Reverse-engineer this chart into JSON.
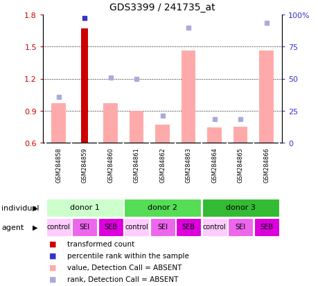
{
  "title": "GDS3399 / 241735_at",
  "samples": [
    "GSM284858",
    "GSM284859",
    "GSM284860",
    "GSM284861",
    "GSM284862",
    "GSM284863",
    "GSM284864",
    "GSM284865",
    "GSM284866"
  ],
  "bar_values": [
    null,
    1.67,
    null,
    null,
    null,
    null,
    null,
    null,
    null
  ],
  "bar_pink_values": [
    0.97,
    null,
    0.97,
    0.9,
    0.77,
    1.46,
    0.74,
    0.75,
    1.46
  ],
  "dot_blue_values": [
    null,
    1.77,
    null,
    null,
    null,
    null,
    null,
    null,
    null
  ],
  "dot_blue_absent": [
    1.03,
    null,
    1.21,
    1.2,
    0.85,
    1.68,
    0.82,
    0.82,
    1.72
  ],
  "ylim_left": [
    0.6,
    1.8
  ],
  "ylim_right": [
    0,
    100
  ],
  "yticks_left": [
    0.6,
    0.9,
    1.2,
    1.5,
    1.8
  ],
  "yticks_right": [
    0,
    25,
    50,
    75,
    100
  ],
  "ytick_labels_left": [
    "0.6",
    "0.9",
    "1.2",
    "1.5",
    "1.8"
  ],
  "ytick_labels_right": [
    "0",
    "25",
    "50",
    "75",
    "100%"
  ],
  "bar_color": "#cc0000",
  "bar_pink_color": "#ffaaaa",
  "dot_blue_color": "#3333cc",
  "dot_blue_absent_color": "#aaaadd",
  "donors": [
    {
      "label": "donor 1",
      "start": 0,
      "end": 3,
      "color": "#ccffcc"
    },
    {
      "label": "donor 2",
      "start": 3,
      "end": 6,
      "color": "#55dd55"
    },
    {
      "label": "donor 3",
      "start": 6,
      "end": 9,
      "color": "#33bb33"
    }
  ],
  "agents": [
    "control",
    "SEI",
    "SEB",
    "control",
    "SEI",
    "SEB",
    "control",
    "SEI",
    "SEB"
  ],
  "agent_colors": [
    "#ffccff",
    "#ee66ee",
    "#dd00dd",
    "#ffccff",
    "#ee66ee",
    "#dd00dd",
    "#ffccff",
    "#ee66ee",
    "#dd00dd"
  ],
  "legend_items": [
    {
      "label": "transformed count",
      "color": "#cc0000"
    },
    {
      "label": "percentile rank within the sample",
      "color": "#3333cc"
    },
    {
      "label": "value, Detection Call = ABSENT",
      "color": "#ffaaaa"
    },
    {
      "label": "rank, Detection Call = ABSENT",
      "color": "#aaaadd"
    }
  ],
  "individual_label": "individual",
  "agent_label": "agent",
  "ylabel_left_color": "#cc0000",
  "ylabel_right_color": "#3333cc",
  "bar_width": 0.55,
  "red_bar_width": 0.25
}
